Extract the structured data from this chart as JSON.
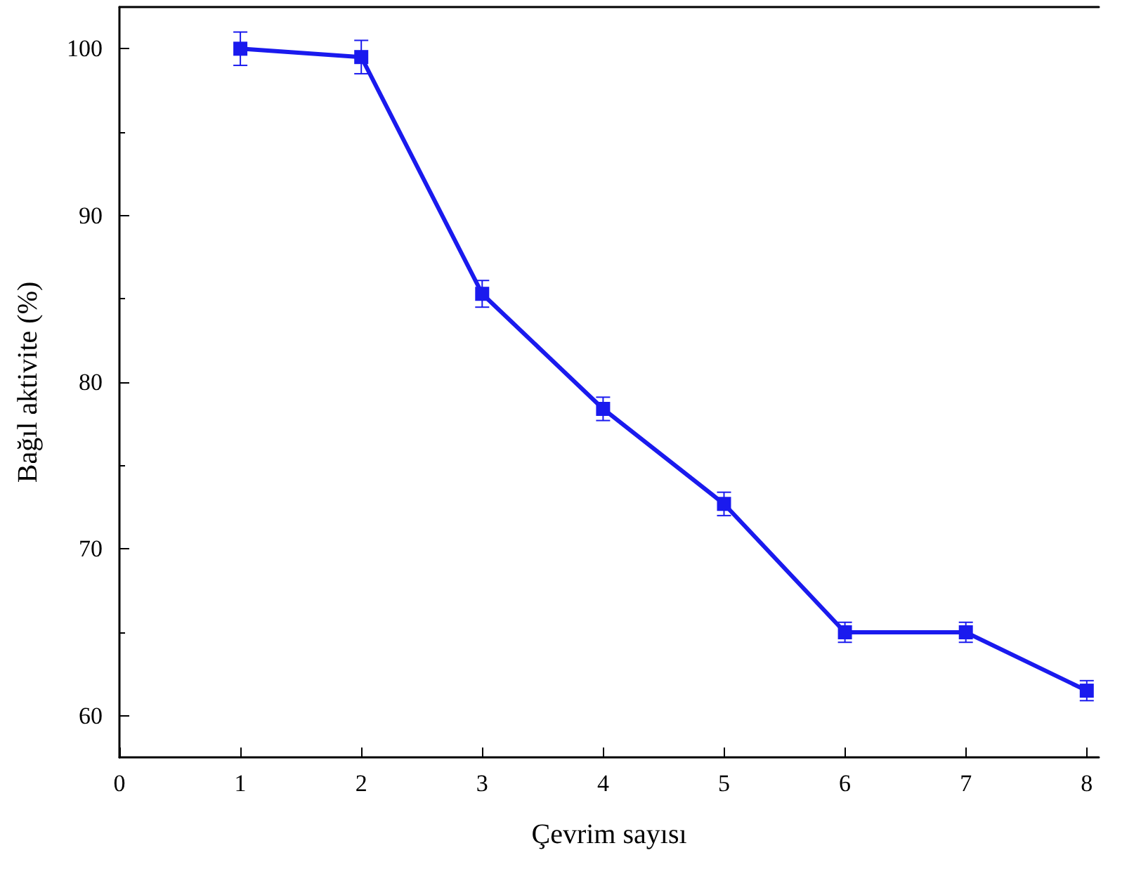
{
  "chart_data": {
    "type": "line",
    "xlabel": "Çevrim sayısı",
    "ylabel": "Bağıl aktivite (%)",
    "x": [
      1,
      2,
      3,
      4,
      5,
      6,
      7,
      8
    ],
    "series": [
      {
        "color": "#1a1aee",
        "values": [
          100,
          99.5,
          85.3,
          78.4,
          72.7,
          65.0,
          65.0,
          61.5
        ],
        "errors": [
          1.0,
          1.0,
          0.8,
          0.7,
          0.7,
          0.6,
          0.6,
          0.6
        ]
      }
    ],
    "xlim": [
      0,
      8.1
    ],
    "xticks": [
      0,
      1,
      2,
      3,
      4,
      5,
      6,
      7,
      8
    ],
    "ylim": [
      57.5,
      102.5
    ],
    "yticks": [
      60,
      70,
      80,
      90,
      100
    ],
    "grid": false,
    "marker": "square",
    "line_style": "solid"
  }
}
